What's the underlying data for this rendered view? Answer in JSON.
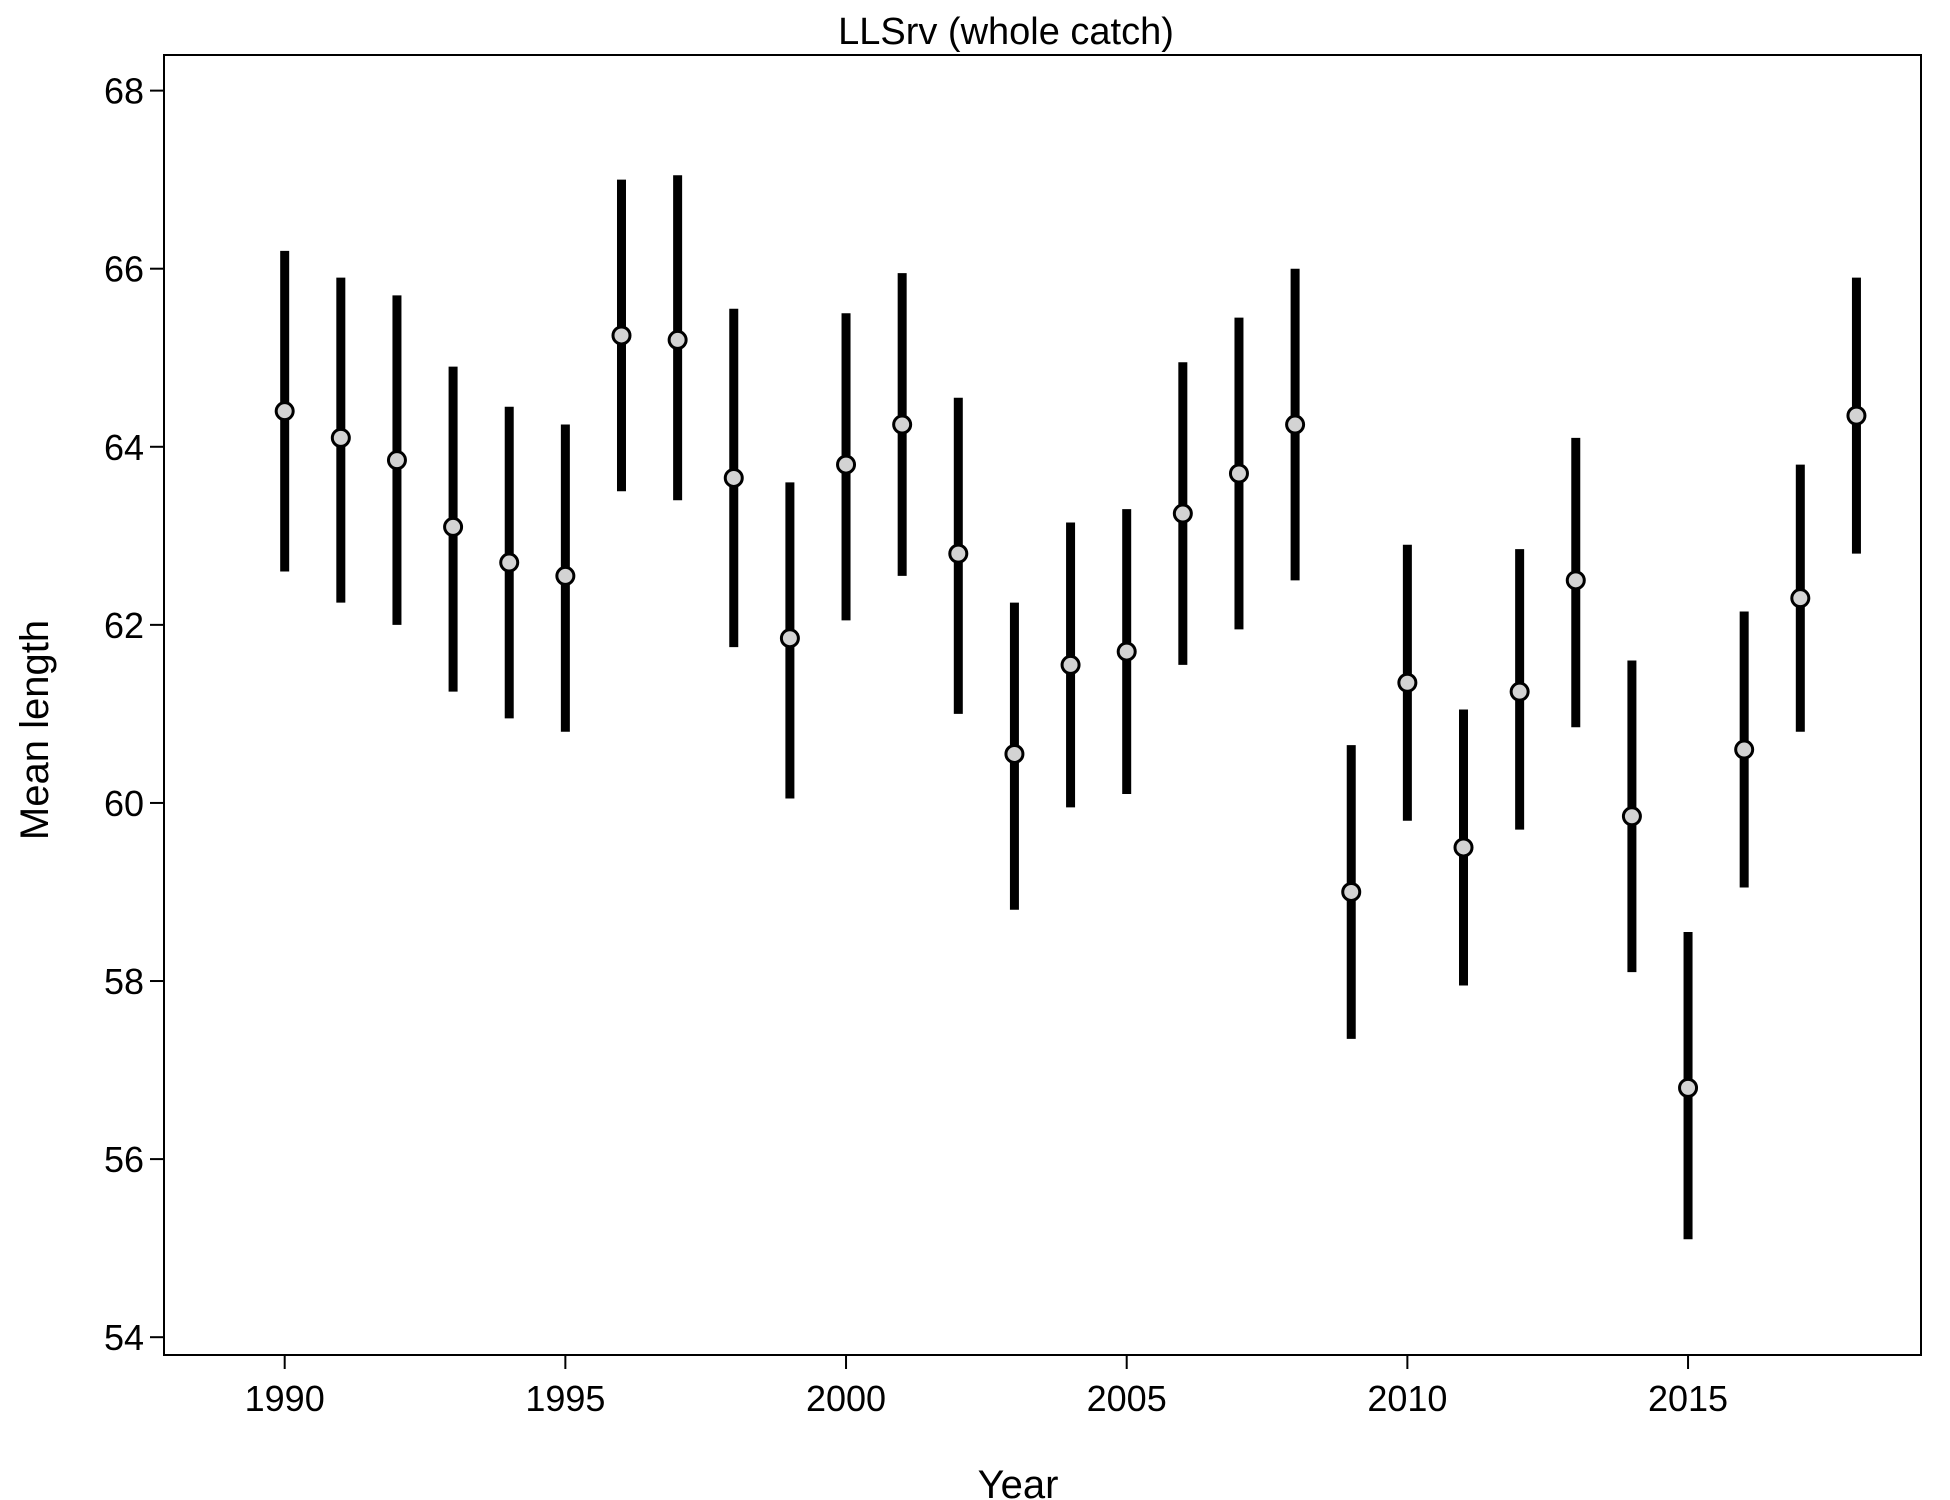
{
  "chart_data": {
    "type": "scatter",
    "title": "LLSrv (whole catch)",
    "xlabel": "Year",
    "ylabel": "Mean length",
    "xlim": [
      1987.85,
      2019.15
    ],
    "ylim": [
      53.8,
      68.4
    ],
    "xticks": [
      1990,
      1995,
      2000,
      2005,
      2010,
      2015
    ],
    "yticks": [
      54,
      56,
      58,
      60,
      62,
      64,
      66,
      68
    ],
    "grid": false,
    "legend": "none",
    "marker_fill": "#d3d3d3",
    "marker_edge": "#000000",
    "bar_color": "#000000",
    "points": [
      {
        "x": 1990,
        "y": 64.4,
        "lo": 62.6,
        "hi": 66.2
      },
      {
        "x": 1991,
        "y": 64.1,
        "lo": 62.25,
        "hi": 65.9
      },
      {
        "x": 1992,
        "y": 63.85,
        "lo": 62.0,
        "hi": 65.7
      },
      {
        "x": 1993,
        "y": 63.1,
        "lo": 61.25,
        "hi": 64.9
      },
      {
        "x": 1994,
        "y": 62.7,
        "lo": 60.95,
        "hi": 64.45
      },
      {
        "x": 1995,
        "y": 62.55,
        "lo": 60.8,
        "hi": 64.25
      },
      {
        "x": 1996,
        "y": 65.25,
        "lo": 63.5,
        "hi": 67.0
      },
      {
        "x": 1997,
        "y": 65.2,
        "lo": 63.4,
        "hi": 67.05
      },
      {
        "x": 1998,
        "y": 63.65,
        "lo": 61.75,
        "hi": 65.55
      },
      {
        "x": 1999,
        "y": 61.85,
        "lo": 60.05,
        "hi": 63.6
      },
      {
        "x": 2000,
        "y": 63.8,
        "lo": 62.05,
        "hi": 65.5
      },
      {
        "x": 2001,
        "y": 64.25,
        "lo": 62.55,
        "hi": 65.95
      },
      {
        "x": 2002,
        "y": 62.8,
        "lo": 61.0,
        "hi": 64.55
      },
      {
        "x": 2003,
        "y": 60.55,
        "lo": 58.8,
        "hi": 62.25
      },
      {
        "x": 2004,
        "y": 61.55,
        "lo": 59.95,
        "hi": 63.15
      },
      {
        "x": 2005,
        "y": 61.7,
        "lo": 60.1,
        "hi": 63.3
      },
      {
        "x": 2006,
        "y": 63.25,
        "lo": 61.55,
        "hi": 64.95
      },
      {
        "x": 2007,
        "y": 63.7,
        "lo": 61.95,
        "hi": 65.45
      },
      {
        "x": 2008,
        "y": 64.25,
        "lo": 62.5,
        "hi": 66.0
      },
      {
        "x": 2009,
        "y": 59.0,
        "lo": 57.35,
        "hi": 60.65
      },
      {
        "x": 2010,
        "y": 61.35,
        "lo": 59.8,
        "hi": 62.9
      },
      {
        "x": 2011,
        "y": 59.5,
        "lo": 57.95,
        "hi": 61.05
      },
      {
        "x": 2012,
        "y": 61.25,
        "lo": 59.7,
        "hi": 62.85
      },
      {
        "x": 2013,
        "y": 62.5,
        "lo": 60.85,
        "hi": 64.1
      },
      {
        "x": 2014,
        "y": 59.85,
        "lo": 58.1,
        "hi": 61.6
      },
      {
        "x": 2015,
        "y": 56.8,
        "lo": 55.1,
        "hi": 58.55
      },
      {
        "x": 2016,
        "y": 60.6,
        "lo": 59.05,
        "hi": 62.15
      },
      {
        "x": 2017,
        "y": 62.3,
        "lo": 60.8,
        "hi": 63.8
      },
      {
        "x": 2018,
        "y": 64.35,
        "lo": 62.8,
        "hi": 65.9
      }
    ]
  }
}
